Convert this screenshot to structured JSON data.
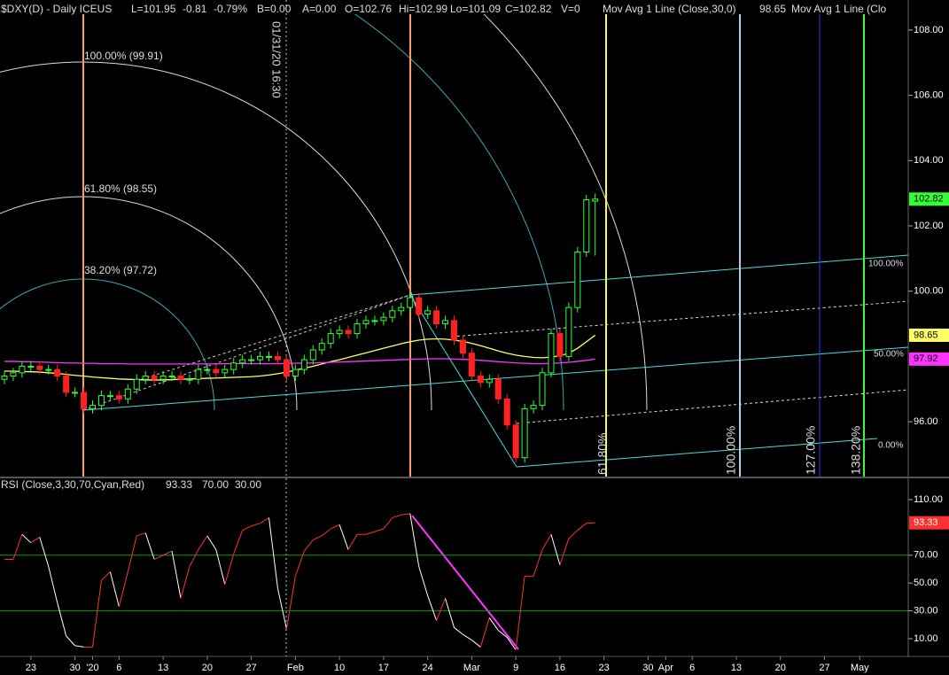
{
  "header": [
    "$DXY(D) - Daily  ICEUS",
    "L=101.95",
    "-0.81",
    "-0.79%",
    "B=0.00",
    "A=0.00",
    "O=102.76",
    "Hi=102.99",
    "Lo=101.09",
    "C=102.82",
    "V=0",
    "Mov Avg 1 Line (Close,30,0)",
    "Mov Avg 1 Line (Clo"
  ],
  "chart_data": [
    {
      "type": "candlestick",
      "categories": [
        null,
        null,
        null,
        "23",
        null,
        null,
        null,
        null,
        "30",
        null,
        "'20",
        null,
        null,
        "6",
        null,
        null,
        null,
        null,
        "13",
        null,
        null,
        null,
        null,
        "20",
        null,
        null,
        null,
        null,
        "27",
        null,
        null,
        null,
        null,
        "Feb",
        null,
        null,
        null,
        null,
        "10",
        null,
        null,
        null,
        null,
        "17",
        null,
        null,
        null,
        null,
        "24",
        null,
        null,
        null,
        null,
        "Mar",
        null,
        null,
        null,
        null,
        "9",
        null,
        null,
        null,
        null,
        "16",
        null,
        null,
        null,
        null,
        "23",
        null,
        null,
        null,
        null,
        "30",
        null,
        "Apr",
        null,
        null,
        "6",
        null,
        null,
        null,
        null,
        "13",
        null,
        null,
        null,
        null,
        "20",
        null,
        null,
        null,
        null,
        "27",
        null,
        null,
        null,
        "May",
        null,
        null,
        null,
        null,
        null
      ],
      "open": [
        97.3,
        97.4,
        97.5,
        97.7,
        97.7,
        97.6,
        97.6,
        97.4,
        96.9,
        96.9,
        96.4,
        96.5,
        96.8,
        96.8,
        96.7,
        97.0,
        97.3,
        97.4,
        97.3,
        97.4,
        97.4,
        97.3,
        97.3,
        97.6,
        97.6,
        97.5,
        97.6,
        97.8,
        97.9,
        97.9,
        98.0,
        98.0,
        97.9,
        97.4,
        97.6,
        97.9,
        98.2,
        98.4,
        98.7,
        98.8,
        98.7,
        99.0,
        99.1,
        99.1,
        99.2,
        99.4,
        99.5,
        99.8,
        99.3,
        99.4,
        99.0,
        99.1,
        98.5,
        98.1,
        97.4,
        97.2,
        97.3,
        96.7,
        95.9,
        94.9,
        96.4,
        96.5,
        97.5,
        98.7,
        98.0,
        99.5,
        101.2,
        102.76,
        null,
        null,
        null,
        null,
        null,
        null,
        null,
        null,
        null,
        null,
        null,
        null,
        null,
        null,
        null,
        null,
        null,
        null,
        null,
        null,
        null,
        null,
        null,
        null,
        null,
        null,
        null,
        null,
        null,
        null,
        null,
        null,
        null,
        null,
        null
      ],
      "high": [
        97.55,
        97.65,
        97.85,
        97.85,
        97.85,
        97.75,
        97.75,
        97.55,
        97.05,
        97.05,
        96.65,
        96.95,
        96.95,
        96.95,
        97.15,
        97.45,
        97.55,
        97.55,
        97.55,
        97.55,
        97.55,
        97.45,
        97.75,
        97.75,
        97.75,
        97.75,
        97.95,
        98.05,
        98.05,
        98.15,
        98.15,
        98.15,
        98.05,
        97.75,
        98.05,
        98.35,
        98.55,
        98.85,
        98.95,
        98.95,
        99.15,
        99.25,
        99.25,
        99.35,
        99.55,
        99.65,
        99.95,
        99.95,
        99.55,
        99.55,
        99.25,
        99.25,
        98.65,
        98.25,
        97.55,
        97.45,
        97.45,
        96.85,
        96.05,
        96.55,
        96.65,
        97.65,
        98.85,
        98.85,
        99.65,
        101.35,
        102.95,
        102.99,
        null,
        null,
        null,
        null,
        null,
        null,
        null,
        null,
        null,
        null,
        null,
        null,
        null,
        null,
        null,
        null,
        null,
        null,
        null,
        null,
        null,
        null,
        null,
        null,
        null,
        null,
        null,
        null,
        null,
        null,
        null,
        null,
        null,
        null,
        null
      ],
      "low": [
        97.15,
        97.25,
        97.35,
        97.55,
        97.45,
        97.45,
        97.25,
        96.75,
        96.75,
        96.25,
        96.25,
        96.35,
        96.65,
        96.55,
        96.55,
        96.85,
        97.15,
        97.15,
        97.15,
        97.25,
        97.15,
        97.15,
        97.15,
        97.45,
        97.35,
        97.35,
        97.45,
        97.65,
        97.75,
        97.75,
        97.85,
        97.75,
        97.25,
        97.25,
        97.45,
        97.75,
        98.05,
        98.25,
        98.55,
        98.55,
        98.55,
        98.85,
        98.95,
        98.95,
        99.05,
        99.25,
        99.35,
        99.15,
        99.15,
        98.85,
        98.85,
        98.35,
        97.95,
        97.25,
        97.05,
        97.05,
        96.55,
        95.75,
        94.75,
        94.75,
        96.25,
        96.35,
        97.35,
        97.85,
        97.85,
        99.35,
        101.05,
        101.09,
        null,
        null,
        null,
        null,
        null,
        null,
        null,
        null,
        null,
        null,
        null,
        null,
        null,
        null,
        null,
        null,
        null,
        null,
        null,
        null,
        null,
        null,
        null,
        null,
        null,
        null,
        null,
        null,
        null,
        null,
        null,
        null,
        null,
        null,
        null
      ],
      "close": [
        97.4,
        97.5,
        97.7,
        97.7,
        97.6,
        97.6,
        97.4,
        96.9,
        96.9,
        96.4,
        96.5,
        96.8,
        96.8,
        96.7,
        97.0,
        97.3,
        97.4,
        97.3,
        97.4,
        97.4,
        97.3,
        97.3,
        97.6,
        97.6,
        97.5,
        97.6,
        97.8,
        97.9,
        97.9,
        98.0,
        98.0,
        97.9,
        97.4,
        97.6,
        97.9,
        98.2,
        98.4,
        98.7,
        98.8,
        98.7,
        99.0,
        99.1,
        99.1,
        99.2,
        99.4,
        99.5,
        99.8,
        99.3,
        99.4,
        99.0,
        99.1,
        98.5,
        98.1,
        97.4,
        97.2,
        97.3,
        96.7,
        95.9,
        94.9,
        96.4,
        96.5,
        97.5,
        98.7,
        98.0,
        99.5,
        101.2,
        102.8,
        102.82,
        null,
        null,
        null,
        null,
        null,
        null,
        null,
        null,
        null,
        null,
        null,
        null,
        null,
        null,
        null,
        null,
        null,
        null,
        null,
        null,
        null,
        null,
        null,
        null,
        null,
        null,
        null,
        null,
        null,
        null,
        null,
        null,
        null,
        null,
        null
      ],
      "up_color": "#33ff33",
      "down_color": "#ff2020",
      "overlays": [
        {
          "color": "#ffff66",
          "values": [
            97.55,
            97.55,
            97.54,
            97.53,
            97.52,
            97.5,
            97.48,
            97.45,
            97.42,
            97.4,
            97.37,
            97.35,
            97.33,
            97.31,
            97.3,
            97.29,
            97.28,
            97.28,
            97.28,
            97.29,
            97.3,
            97.31,
            97.32,
            97.33,
            97.34,
            97.35,
            97.36,
            97.37,
            97.38,
            97.4,
            97.43,
            97.47,
            97.52,
            97.58,
            97.64,
            97.7,
            97.77,
            97.84,
            97.9,
            97.97,
            98.04,
            98.11,
            98.18,
            98.25,
            98.32,
            98.39,
            98.45,
            98.5,
            98.53,
            98.54,
            98.53,
            98.5,
            98.46,
            98.4,
            98.33,
            98.25,
            98.17,
            98.1,
            98.04,
            98.0,
            97.97,
            97.96,
            97.98,
            98.02,
            98.1,
            98.25,
            98.45,
            98.65,
            null,
            null,
            null,
            null,
            null,
            null,
            null,
            null,
            null,
            null,
            null,
            null,
            null,
            null,
            null,
            null,
            null,
            null,
            null,
            null,
            null,
            null,
            null,
            null,
            null,
            null,
            null,
            null,
            null,
            null,
            null,
            null,
            null,
            null,
            null
          ]
        },
        {
          "color": "#ff33ff",
          "values": [
            97.85,
            97.85,
            97.84,
            97.84,
            97.83,
            97.82,
            97.81,
            97.8,
            97.8,
            97.79,
            97.79,
            97.78,
            97.78,
            97.78,
            97.77,
            97.77,
            97.77,
            97.77,
            97.77,
            97.77,
            97.77,
            97.77,
            97.77,
            97.77,
            97.77,
            97.78,
            97.78,
            97.78,
            97.78,
            97.78,
            97.78,
            97.78,
            97.79,
            97.79,
            97.8,
            97.8,
            97.81,
            97.82,
            97.83,
            97.84,
            97.85,
            97.86,
            97.87,
            97.88,
            97.89,
            97.9,
            97.91,
            97.92,
            97.93,
            97.93,
            97.93,
            97.92,
            97.91,
            97.9,
            97.88,
            97.86,
            97.84,
            97.82,
            97.8,
            97.79,
            97.78,
            97.78,
            97.79,
            97.8,
            97.82,
            97.85,
            97.88,
            97.92,
            null,
            null,
            null,
            null,
            null,
            null,
            null,
            null,
            null,
            null,
            null,
            null,
            null,
            null,
            null,
            null,
            null,
            null,
            null,
            null,
            null,
            null,
            null,
            null,
            null,
            null,
            null,
            null,
            null,
            null,
            null,
            null,
            null,
            null,
            null
          ]
        }
      ],
      "ylim": [
        94.32,
        108.92
      ],
      "yticks": [
        {
          "value": 96,
          "label": "96.00"
        },
        {
          "value": 100,
          "label": "100.00"
        },
        {
          "value": 102,
          "label": "102.00"
        },
        {
          "value": 104,
          "label": "104.00"
        },
        {
          "value": 106,
          "label": "106.00"
        },
        {
          "value": 108,
          "label": "108.00"
        }
      ],
      "annotations": {
        "timestamp": "01/31/20 16:30",
        "arc_labels": [
          "100.00% (99.91)",
          "61.80% (98.55)",
          "38.20% (97.72)"
        ],
        "time_labels": [
          "61.80%",
          "100.00%",
          "127.00%",
          "138.20%"
        ],
        "channel_labels": [
          "100.00%",
          "50.00%",
          "0.00%"
        ]
      }
    },
    {
      "type": "line",
      "title": "RSI (Close,3,30,70,Cyan,Red)",
      "values": [
        67,
        67,
        85,
        79,
        83,
        62,
        36,
        12,
        5,
        4,
        4,
        52,
        58,
        33,
        58,
        84,
        86,
        67,
        70,
        73,
        39,
        62,
        74,
        84,
        74,
        49,
        71,
        88,
        91,
        93,
        97,
        46,
        17,
        55,
        73,
        81,
        84,
        89,
        92,
        74,
        85,
        85,
        87,
        89,
        97,
        99,
        100,
        62,
        41,
        23,
        39,
        18,
        13,
        9,
        4,
        25,
        16,
        11,
        2,
        55,
        55,
        74,
        85,
        63,
        82,
        88,
        93,
        93.33,
        null,
        null,
        null,
        null,
        null,
        null,
        null,
        null,
        null,
        null,
        null,
        null,
        null,
        null,
        null,
        null,
        null,
        null,
        null,
        null,
        null,
        null,
        null,
        null,
        null,
        null,
        null,
        null,
        null,
        null,
        null,
        null,
        null,
        null,
        null
      ],
      "up_color": "#ff3030",
      "down_color": "#ffffff",
      "levels": [
        {
          "value": 70,
          "label": "70.00"
        },
        {
          "value": 30,
          "label": "30.00"
        }
      ],
      "level_color": "#129a12",
      "ylim": [
        -2.1,
        120.2
      ],
      "yticks": [
        {
          "value": 110,
          "label": "110.00"
        },
        {
          "value": 70,
          "label": "70.00"
        },
        {
          "value": 50,
          "label": "50.00"
        },
        {
          "value": 30,
          "label": "30.00"
        },
        {
          "value": 10,
          "label": "10.00"
        }
      ]
    }
  ]
}
